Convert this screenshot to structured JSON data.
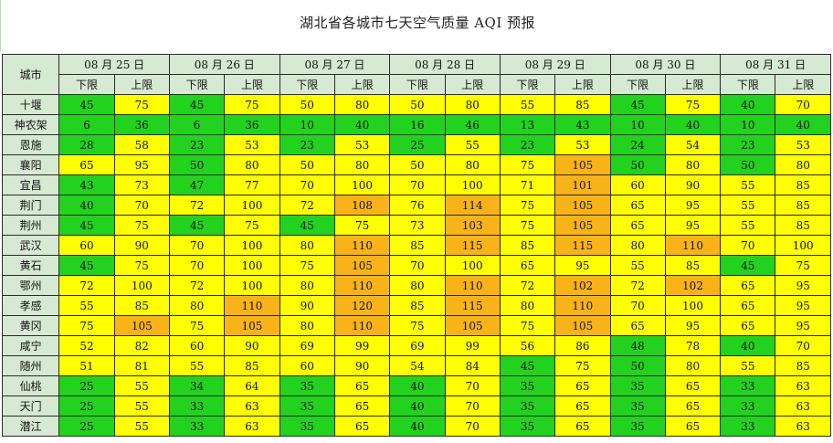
{
  "title": "湖北省各城市七天空气质量 AQI 预报",
  "header": {
    "city": "城市",
    "lower": "下限",
    "upper": "上限"
  },
  "dates": [
    "08 月 25 日",
    "08 月 26 日",
    "08 月 27 日",
    "08 月 28 日",
    "08 月 29 日",
    "08 月 30 日",
    "08 月 31 日"
  ],
  "colors": {
    "good": "#22d21e",
    "moderate": "#ffff00",
    "unhealthy_sensitive": "#f9b319",
    "header": "#d6e9d2"
  },
  "rows": [
    {
      "city": "十堰",
      "values": [
        45,
        75,
        45,
        75,
        50,
        80,
        50,
        80,
        55,
        85,
        45,
        75,
        40,
        70
      ],
      "levels": [
        "g",
        "y",
        "g",
        "y",
        "y",
        "y",
        "y",
        "y",
        "y",
        "y",
        "g",
        "y",
        "g",
        "y"
      ]
    },
    {
      "city": "神农架",
      "values": [
        6,
        36,
        6,
        36,
        10,
        40,
        16,
        46,
        13,
        43,
        10,
        40,
        10,
        40
      ],
      "levels": [
        "g",
        "g",
        "g",
        "g",
        "g",
        "g",
        "g",
        "g",
        "g",
        "g",
        "g",
        "g",
        "g",
        "g"
      ]
    },
    {
      "city": "恩施",
      "values": [
        28,
        58,
        23,
        53,
        23,
        53,
        25,
        55,
        23,
        53,
        24,
        54,
        23,
        53
      ],
      "levels": [
        "g",
        "y",
        "g",
        "y",
        "g",
        "y",
        "g",
        "y",
        "g",
        "y",
        "g",
        "y",
        "g",
        "y"
      ]
    },
    {
      "city": "襄阳",
      "values": [
        65,
        95,
        50,
        80,
        50,
        80,
        50,
        80,
        75,
        105,
        50,
        80,
        50,
        80
      ],
      "levels": [
        "y",
        "y",
        "g",
        "y",
        "y",
        "y",
        "y",
        "y",
        "y",
        "o",
        "g",
        "y",
        "g",
        "y"
      ]
    },
    {
      "city": "宜昌",
      "values": [
        43,
        73,
        47,
        77,
        70,
        100,
        70,
        100,
        71,
        101,
        60,
        90,
        55,
        85
      ],
      "levels": [
        "g",
        "y",
        "g",
        "y",
        "y",
        "y",
        "y",
        "y",
        "y",
        "o",
        "y",
        "y",
        "y",
        "y"
      ]
    },
    {
      "city": "荆门",
      "values": [
        40,
        70,
        72,
        100,
        72,
        108,
        76,
        114,
        75,
        105,
        65,
        95,
        55,
        85
      ],
      "levels": [
        "g",
        "y",
        "y",
        "y",
        "y",
        "o",
        "y",
        "o",
        "y",
        "o",
        "y",
        "y",
        "y",
        "y"
      ]
    },
    {
      "city": "荆州",
      "values": [
        45,
        75,
        45,
        75,
        45,
        75,
        73,
        103,
        75,
        105,
        65,
        95,
        55,
        85
      ],
      "levels": [
        "g",
        "y",
        "g",
        "y",
        "g",
        "y",
        "y",
        "o",
        "y",
        "o",
        "y",
        "y",
        "y",
        "y"
      ]
    },
    {
      "city": "武汉",
      "values": [
        60,
        90,
        70,
        100,
        80,
        110,
        85,
        115,
        85,
        115,
        80,
        110,
        70,
        100
      ],
      "levels": [
        "y",
        "y",
        "y",
        "y",
        "y",
        "o",
        "y",
        "o",
        "y",
        "o",
        "y",
        "o",
        "y",
        "y"
      ]
    },
    {
      "city": "黄石",
      "values": [
        45,
        75,
        70,
        100,
        75,
        105,
        70,
        100,
        65,
        95,
        55,
        85,
        45,
        75
      ],
      "levels": [
        "g",
        "y",
        "y",
        "y",
        "y",
        "o",
        "y",
        "y",
        "y",
        "y",
        "y",
        "y",
        "g",
        "y"
      ]
    },
    {
      "city": "鄂州",
      "values": [
        72,
        100,
        72,
        100,
        80,
        110,
        80,
        110,
        72,
        102,
        72,
        102,
        65,
        95
      ],
      "levels": [
        "y",
        "y",
        "y",
        "y",
        "y",
        "o",
        "y",
        "o",
        "y",
        "o",
        "y",
        "o",
        "y",
        "y"
      ]
    },
    {
      "city": "孝感",
      "values": [
        55,
        85,
        80,
        110,
        90,
        120,
        85,
        115,
        80,
        110,
        70,
        100,
        65,
        95
      ],
      "levels": [
        "y",
        "y",
        "y",
        "o",
        "y",
        "o",
        "y",
        "o",
        "y",
        "o",
        "y",
        "y",
        "y",
        "y"
      ]
    },
    {
      "city": "黄冈",
      "values": [
        75,
        105,
        75,
        105,
        80,
        110,
        75,
        105,
        75,
        105,
        65,
        95,
        65,
        95
      ],
      "levels": [
        "y",
        "o",
        "y",
        "o",
        "y",
        "o",
        "y",
        "o",
        "y",
        "o",
        "y",
        "y",
        "y",
        "y"
      ]
    },
    {
      "city": "咸宁",
      "values": [
        52,
        82,
        60,
        90,
        69,
        99,
        69,
        99,
        56,
        86,
        48,
        78,
        40,
        70
      ],
      "levels": [
        "y",
        "y",
        "y",
        "y",
        "y",
        "y",
        "y",
        "y",
        "y",
        "y",
        "g",
        "y",
        "g",
        "y"
      ]
    },
    {
      "city": "随州",
      "values": [
        51,
        81,
        55,
        85,
        60,
        90,
        54,
        84,
        45,
        75,
        50,
        80,
        55,
        85
      ],
      "levels": [
        "y",
        "y",
        "y",
        "y",
        "y",
        "y",
        "y",
        "y",
        "g",
        "y",
        "g",
        "y",
        "y",
        "y"
      ]
    },
    {
      "city": "仙桃",
      "values": [
        25,
        55,
        34,
        64,
        35,
        65,
        40,
        70,
        35,
        65,
        35,
        65,
        33,
        63
      ],
      "levels": [
        "g",
        "y",
        "g",
        "y",
        "g",
        "y",
        "g",
        "y",
        "g",
        "y",
        "g",
        "y",
        "g",
        "y"
      ]
    },
    {
      "city": "天门",
      "values": [
        25,
        55,
        33,
        63,
        35,
        65,
        40,
        70,
        35,
        65,
        35,
        65,
        33,
        63
      ],
      "levels": [
        "g",
        "y",
        "g",
        "y",
        "g",
        "y",
        "g",
        "y",
        "g",
        "y",
        "g",
        "y",
        "g",
        "y"
      ]
    },
    {
      "city": "潜江",
      "values": [
        25,
        55,
        33,
        63,
        35,
        65,
        40,
        70,
        35,
        65,
        35,
        65,
        33,
        63
      ],
      "levels": [
        "g",
        "y",
        "g",
        "y",
        "g",
        "y",
        "g",
        "y",
        "g",
        "y",
        "g",
        "y",
        "g",
        "y"
      ]
    }
  ]
}
